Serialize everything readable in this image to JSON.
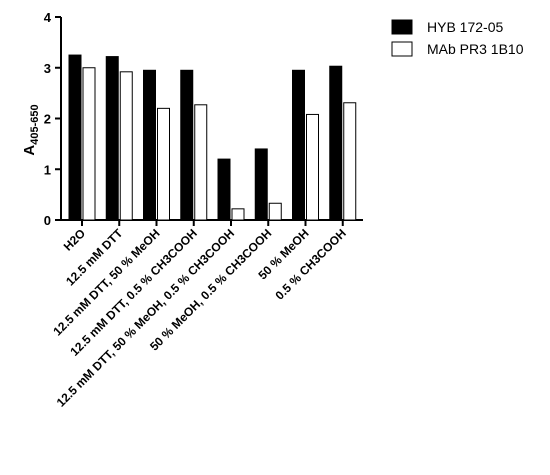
{
  "chart_data": {
    "type": "bar",
    "ylabel": "A",
    "ylabel_subscript": "405-650",
    "ylim": [
      0,
      4
    ],
    "yticks": [
      "0",
      "1",
      "2",
      "3",
      "4"
    ],
    "grid": false,
    "legend_position": "top-right",
    "categories": [
      "H2O",
      "12.5 mM DTT",
      "12.5 mM DTT, 50 % MeOH",
      "12.5 mM DTT, 0.5 % CH3COOH",
      "12.5 mM DTT, 50 % MeOH, 0.5 % CH3COOH",
      "50 % MeOH, 0.5 % CH3COOH",
      "50 % MeOH",
      "0.5 % CH3COOH"
    ],
    "series": [
      {
        "name": "HYB 172-05",
        "color": "#000000",
        "values": [
          3.25,
          3.22,
          2.95,
          2.95,
          1.2,
          1.4,
          2.95,
          3.03
        ]
      },
      {
        "name": "MAb PR3 1B10",
        "color": "#ffffff",
        "values": [
          3.0,
          2.92,
          2.2,
          2.27,
          0.22,
          0.33,
          2.08,
          2.31
        ]
      }
    ]
  }
}
